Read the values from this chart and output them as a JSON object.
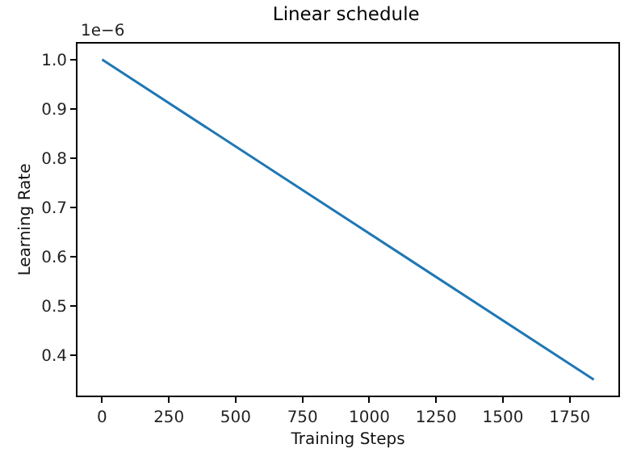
{
  "chart_data": {
    "type": "line",
    "title": "Linear schedule",
    "xlabel": "Training Steps",
    "ylabel": "Learning Rate",
    "annotations": [
      "1e−6"
    ],
    "x": [
      0,
      1840
    ],
    "series": [
      {
        "color": "#1f77b4",
        "values": [
          1.0,
          0.35
        ]
      }
    ],
    "xlim": [
      -92,
      1932
    ],
    "ylim": [
      0.3175,
      1.0325
    ],
    "xticks": [
      0,
      250,
      500,
      750,
      1000,
      1250,
      1500,
      1750
    ],
    "yticks": [
      0.4,
      0.5,
      0.6,
      0.7,
      0.8,
      0.9,
      {
        "value": 1.0,
        "label": "1.0"
      }
    ],
    "grid": false
  }
}
